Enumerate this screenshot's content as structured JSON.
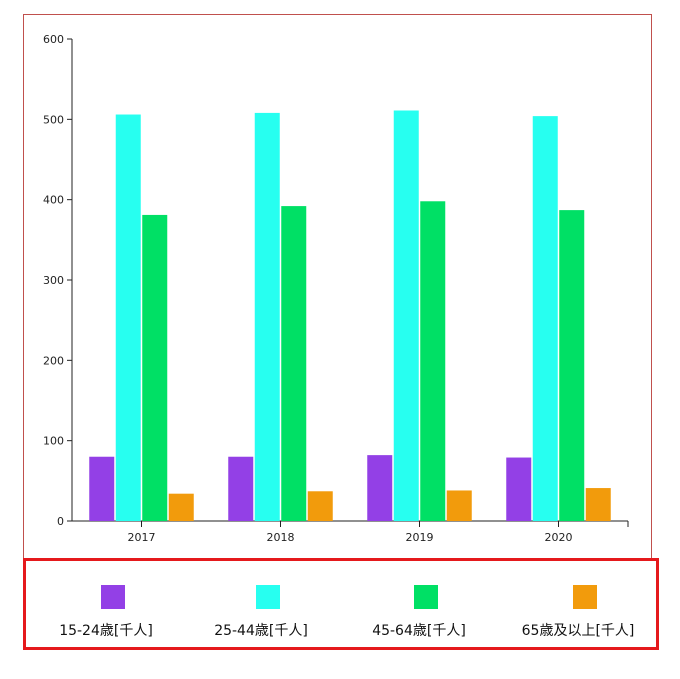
{
  "colors": {
    "frame": "#c0504d",
    "legend_border": "#e5191c",
    "axis": "#222222"
  },
  "chart_data": {
    "type": "bar",
    "title": "",
    "xlabel": "",
    "ylabel": "",
    "categories": [
      "2017",
      "2018",
      "2019",
      "2020"
    ],
    "ylim": [
      0,
      600
    ],
    "yticks": [
      "0",
      "100",
      "200",
      "300",
      "400",
      "500",
      "600"
    ],
    "grid": false,
    "legend_position": "bottom",
    "series": [
      {
        "name": "15-24歳[千人]",
        "color": "#9340e6",
        "values": [
          80,
          80,
          82,
          79
        ]
      },
      {
        "name": "25-44歳[千人]",
        "color": "#27fff0",
        "values": [
          506,
          508,
          511,
          504
        ]
      },
      {
        "name": "45-64歳[千人]",
        "color": "#00e065",
        "values": [
          381,
          392,
          398,
          387
        ]
      },
      {
        "name": "65歳及以上[千人]",
        "color": "#f29b0c",
        "values": [
          34,
          37,
          38,
          41
        ]
      }
    ]
  }
}
